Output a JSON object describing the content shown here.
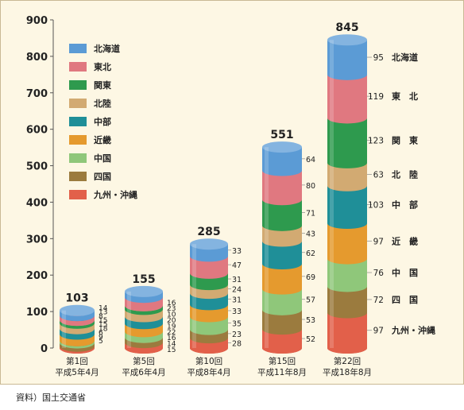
{
  "source": "資料）国土交通省",
  "chart_data": {
    "type": "bar",
    "stacked": true,
    "ylim": [
      0,
      900
    ],
    "yticks": [
      0,
      100,
      200,
      300,
      400,
      500,
      600,
      700,
      800,
      900
    ],
    "grid": false,
    "legend_position": "top-left",
    "categories": [
      {
        "line1": "第1回",
        "line2": "平成5年4月"
      },
      {
        "line1": "第5回",
        "line2": "平成6年4月"
      },
      {
        "line1": "第10回",
        "line2": "平成8年4月"
      },
      {
        "line1": "第15回",
        "line2": "平成11年8月"
      },
      {
        "line1": "第22回",
        "line2": "平成18年8月"
      }
    ],
    "totals": [
      103,
      155,
      285,
      551,
      845
    ],
    "series": [
      {
        "name": "北海道",
        "short": "北海道",
        "color": "#5b9bd5",
        "values": [
          14,
          16,
          33,
          64,
          95
        ]
      },
      {
        "name": "東北",
        "short": "東　北",
        "color": "#e07880",
        "values": [
          13,
          23,
          47,
          80,
          119
        ]
      },
      {
        "name": "関東",
        "short": "関　東",
        "color": "#2e9a4e",
        "values": [
          8,
          10,
          31,
          71,
          123
        ]
      },
      {
        "name": "北陸",
        "short": "北　陸",
        "color": "#d2aa72",
        "values": [
          15,
          20,
          24,
          43,
          63
        ]
      },
      {
        "name": "中部",
        "short": "中　部",
        "color": "#1f8f98",
        "values": [
          15,
          19,
          31,
          62,
          103
        ]
      },
      {
        "name": "近畿",
        "short": "近　畿",
        "color": "#e59a2e",
        "values": [
          18,
          22,
          33,
          69,
          97
        ]
      },
      {
        "name": "中国",
        "short": "中　国",
        "color": "#8fc77a",
        "values": [
          6,
          16,
          35,
          57,
          76
        ]
      },
      {
        "name": "四国",
        "short": "四　国",
        "color": "#9b7b3e",
        "values": [
          9,
          14,
          23,
          53,
          72
        ]
      },
      {
        "name": "九州・沖縄",
        "short": "九州・沖縄",
        "color": "#e2604a",
        "values": [
          5,
          15,
          28,
          52,
          97
        ]
      }
    ]
  }
}
